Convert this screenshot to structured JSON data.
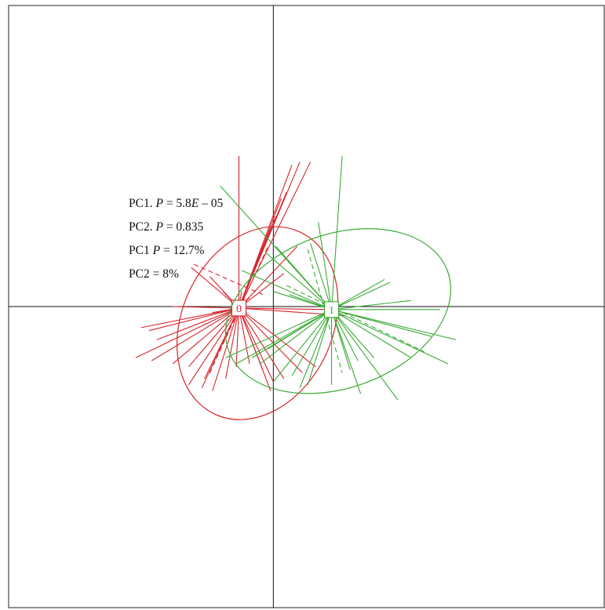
{
  "chart_data": {
    "type": "scatter",
    "subtype": "pca-group-star-plot",
    "title": "",
    "xlabel": "",
    "ylabel": "",
    "xlim": [
      -1.0,
      1.25
    ],
    "ylim": [
      -1.0,
      1.0
    ],
    "axes_cross_at": [
      0,
      0
    ],
    "grid": false,
    "legend": "none",
    "annotations": [
      {
        "prefix": "PC1. ",
        "italic": "P",
        "mid": " = 5.8",
        "italic2": "E",
        "suffix": " – 05"
      },
      {
        "prefix": "PC2. ",
        "italic": "P",
        "mid": " = 0.835",
        "italic2": "",
        "suffix": ""
      },
      {
        "prefix": "PC1 ",
        "italic": "P",
        "mid": " = 12.7%",
        "italic2": "",
        "suffix": ""
      },
      {
        "prefix": "PC2 = 8%",
        "italic": "",
        "mid": "",
        "italic2": "",
        "suffix": ""
      }
    ],
    "series": [
      {
        "label": "0",
        "color": "#d9242b",
        "center": [
          -0.13,
          -0.005
        ],
        "ellipse": {
          "rx": 0.38,
          "ry": 0.25,
          "rotation_deg": 65,
          "cx": -0.06,
          "cy": -0.055
        },
        "points": [
          [
            -0.13,
            0.5
          ],
          [
            0.07,
            0.47
          ],
          [
            0.1,
            0.48
          ],
          [
            0.14,
            0.48
          ],
          [
            0.05,
            0.38
          ],
          [
            0.03,
            0.36
          ],
          [
            0.01,
            0.3
          ],
          [
            -0.01,
            0.26
          ],
          [
            0.09,
            0.2
          ],
          [
            0.04,
            0.11
          ],
          [
            -0.31,
            0.13
          ],
          [
            -0.24,
            0.1
          ],
          [
            -0.19,
            0.05
          ],
          [
            -0.12,
            0.05
          ],
          [
            -0.09,
            0.03
          ],
          [
            -0.38,
            0.0
          ],
          [
            -0.23,
            -0.02
          ],
          [
            -0.1,
            -0.02
          ],
          [
            0.22,
            -0.01
          ],
          [
            0.27,
            -0.03
          ],
          [
            -0.5,
            -0.07
          ],
          [
            -0.47,
            -0.08
          ],
          [
            -0.44,
            -0.11
          ],
          [
            -0.52,
            -0.17
          ],
          [
            -0.46,
            -0.18
          ],
          [
            -0.38,
            -0.19
          ],
          [
            -0.32,
            -0.2
          ],
          [
            -0.26,
            -0.24
          ],
          [
            -0.27,
            -0.27
          ],
          [
            -0.32,
            -0.26
          ],
          [
            -0.23,
            -0.28
          ],
          [
            -0.18,
            -0.24
          ],
          [
            -0.14,
            -0.2
          ],
          [
            -0.09,
            -0.19
          ],
          [
            -0.04,
            -0.21
          ],
          [
            0.0,
            -0.25
          ],
          [
            -0.01,
            -0.28
          ],
          [
            0.04,
            -0.24
          ],
          [
            0.11,
            -0.22
          ],
          [
            0.16,
            -0.2
          ]
        ],
        "dashed_axes": [
          [
            [
              -0.3,
              0.14
            ],
            [
              -0.04,
              0.04
            ]
          ],
          [
            [
              -0.24,
              -0.22
            ],
            [
              -0.02,
              0.2
            ]
          ]
        ]
      },
      {
        "label": "1",
        "color": "#3aaa35",
        "center": [
          0.22,
          -0.01
        ],
        "ellipse": {
          "rx": 0.44,
          "ry": 0.255,
          "rotation_deg": 20,
          "cx": 0.245,
          "cy": -0.015
        },
        "points": [
          [
            0.26,
            0.5
          ],
          [
            -0.2,
            0.4
          ],
          [
            0.17,
            0.28
          ],
          [
            0.14,
            0.21
          ],
          [
            0.01,
            0.2
          ],
          [
            -0.03,
            0.18
          ],
          [
            -0.12,
            0.12
          ],
          [
            0.42,
            0.09
          ],
          [
            0.44,
            0.08
          ],
          [
            0.0,
            0.05
          ],
          [
            0.06,
            0.04
          ],
          [
            0.52,
            0.02
          ],
          [
            0.63,
            -0.01
          ],
          [
            0.69,
            -0.11
          ],
          [
            0.6,
            -0.1
          ],
          [
            0.66,
            -0.19
          ],
          [
            0.52,
            -0.17
          ],
          [
            0.38,
            -0.17
          ],
          [
            0.32,
            -0.18
          ],
          [
            0.29,
            -0.21
          ],
          [
            0.47,
            -0.31
          ],
          [
            0.33,
            -0.29
          ],
          [
            0.22,
            -0.26
          ],
          [
            0.13,
            -0.26
          ],
          [
            -0.08,
            -0.17
          ],
          [
            -0.14,
            -0.19
          ],
          [
            -0.18,
            -0.17
          ],
          [
            -0.05,
            -0.19
          ],
          [
            0.07,
            -0.23
          ],
          [
            0.1,
            -0.27
          ],
          [
            0.0,
            -0.25
          ],
          [
            -0.02,
            -0.14
          ]
        ],
        "dashed_axes": [
          [
            [
              0.13,
              0.19
            ],
            [
              0.26,
              -0.22
            ]
          ],
          [
            [
              0.05,
              0.07
            ],
            [
              0.57,
              -0.15
            ]
          ]
        ]
      }
    ]
  }
}
